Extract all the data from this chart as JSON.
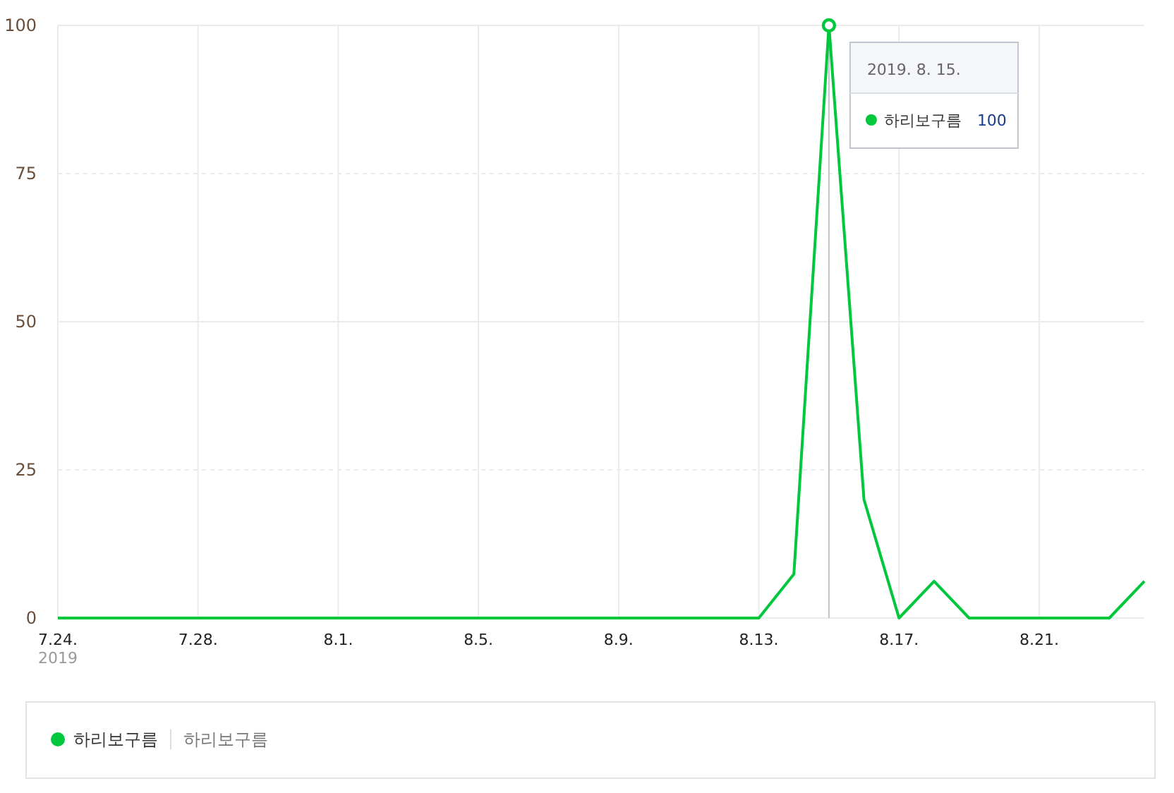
{
  "chart_data": {
    "type": "line",
    "xlabel": "2019",
    "x": [
      "2019-07-24",
      "2019-07-25",
      "2019-07-26",
      "2019-07-27",
      "2019-07-28",
      "2019-07-29",
      "2019-07-30",
      "2019-07-31",
      "2019-08-01",
      "2019-08-02",
      "2019-08-03",
      "2019-08-04",
      "2019-08-05",
      "2019-08-06",
      "2019-08-07",
      "2019-08-08",
      "2019-08-09",
      "2019-08-10",
      "2019-08-11",
      "2019-08-12",
      "2019-08-13",
      "2019-08-14",
      "2019-08-15",
      "2019-08-16",
      "2019-08-17",
      "2019-08-18",
      "2019-08-19",
      "2019-08-20",
      "2019-08-21",
      "2019-08-22",
      "2019-08-23",
      "2019-08-24"
    ],
    "series": [
      {
        "name": "하리보구름",
        "color": "#00c73c",
        "values": [
          0,
          0,
          0,
          0,
          0,
          0,
          0,
          0,
          0,
          0,
          0,
          0,
          0,
          0,
          0,
          0,
          0,
          0,
          0,
          0,
          0,
          7.4,
          100,
          20,
          0,
          6.2,
          0,
          0,
          0,
          0,
          0,
          6.2
        ]
      }
    ],
    "xlim": [
      "2019-07-24",
      "2019-08-24"
    ],
    "xticks": [
      {
        "value": "2019-07-24",
        "label": "7.24."
      },
      {
        "value": "2019-07-28",
        "label": "7.28."
      },
      {
        "value": "2019-08-01",
        "label": "8.1."
      },
      {
        "value": "2019-08-05",
        "label": "8.5."
      },
      {
        "value": "2019-08-09",
        "label": "8.9."
      },
      {
        "value": "2019-08-13",
        "label": "8.13."
      },
      {
        "value": "2019-08-17",
        "label": "8.17."
      },
      {
        "value": "2019-08-21",
        "label": "8.21."
      }
    ],
    "ylim": [
      0,
      100
    ],
    "yticks": [
      0,
      25,
      50,
      75,
      100
    ],
    "grid": true,
    "legend": "bottom",
    "marker": "none",
    "line_style": "solid",
    "ref_lines": [
      {
        "axis": "x",
        "value": "2019-08-15",
        "color": "#c0c4cc"
      }
    ],
    "annotations": [
      "2019. 8. 15.",
      "하리보구름",
      "100",
      "하리보구름"
    ]
  }
}
